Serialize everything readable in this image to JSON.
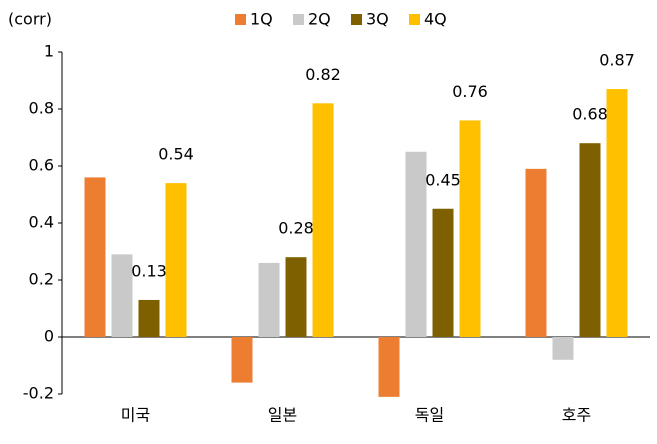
{
  "chart_data": {
    "type": "bar",
    "y_label": "(corr)",
    "categories": [
      "미국",
      "일본",
      "독일",
      "호주"
    ],
    "series": [
      {
        "name": "1Q",
        "color": "#ED7D31",
        "values": [
          0.56,
          -0.16,
          -0.21,
          0.59
        ]
      },
      {
        "name": "2Q",
        "color": "#C9C9C9",
        "values": [
          0.29,
          0.26,
          0.65,
          -0.08
        ]
      },
      {
        "name": "3Q",
        "color": "#7F6000",
        "values": [
          0.13,
          0.28,
          0.45,
          0.68
        ],
        "show_labels": true
      },
      {
        "name": "4Q",
        "color": "#FFC000",
        "values": [
          0.54,
          0.82,
          0.76,
          0.87
        ],
        "show_labels": true
      }
    ],
    "ylim": [
      -0.2,
      1
    ],
    "yticks": [
      -0.2,
      0,
      0.2,
      0.4,
      0.6,
      0.8,
      1
    ],
    "grid": false,
    "legend": "top"
  }
}
